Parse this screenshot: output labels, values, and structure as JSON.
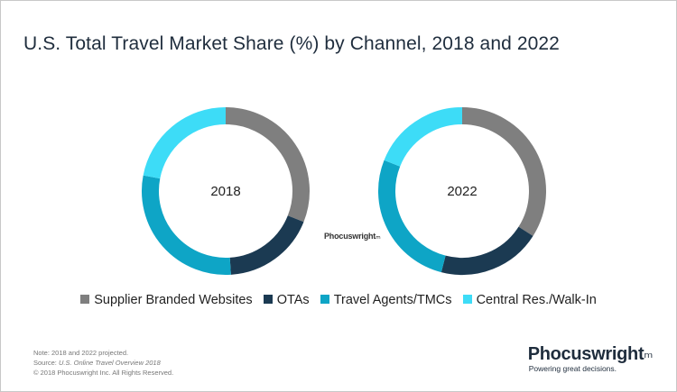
{
  "title": "U.S. Total Travel Market Share (%) by Channel, 2018 and 2022",
  "colors": {
    "supplier": "#7f7f7f",
    "otas": "#1b3a52",
    "agents": "#0ea5c6",
    "central": "#3ddcf7"
  },
  "chart_data": [
    {
      "type": "pie",
      "center_label": "2018",
      "categories": [
        "Supplier Branded Websites",
        "OTAs",
        "Travel Agents/TMCs",
        "Central Res./Walk-In"
      ],
      "values": [
        31,
        18,
        29,
        22
      ]
    },
    {
      "type": "pie",
      "center_label": "2022",
      "categories": [
        "Supplier Branded Websites",
        "OTAs",
        "Travel Agents/TMCs",
        "Central Res./Walk-In"
      ],
      "values": [
        34,
        20,
        27,
        19
      ]
    }
  ],
  "legend": [
    {
      "label": "Supplier Branded Websites",
      "color_key": "supplier"
    },
    {
      "label": "OTAs",
      "color_key": "otas"
    },
    {
      "label": "Travel Agents/TMCs",
      "color_key": "agents"
    },
    {
      "label": "Central Res./Walk-In",
      "color_key": "central"
    }
  ],
  "watermark": "Phocuswright",
  "footnotes": {
    "note": "Note: 2018 and 2022 projected.",
    "source_prefix": "Source: ",
    "source_title": "U.S. Online Travel Overview 2018",
    "copyright": "© 2018 Phocuswright Inc. All Rights Reserved."
  },
  "logo": {
    "name": "Phocuswright",
    "tagline": "Powering great decisions."
  }
}
